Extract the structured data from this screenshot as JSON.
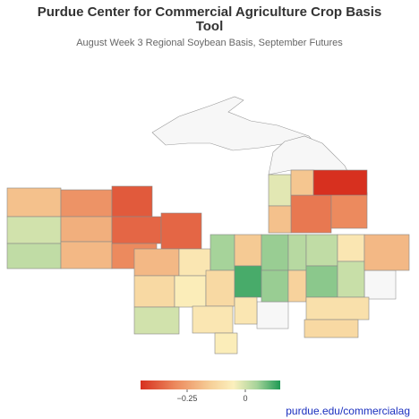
{
  "title": "Purdue Center for Commercial Agriculture Crop Basis Tool",
  "subtitle": "August Week 3 Regional Soybean Basis, September Futures",
  "map": {
    "values": [
      -0.18,
      -0.28,
      -0.38,
      0.0,
      -0.22,
      -0.36,
      0.02,
      -0.2,
      -0.3,
      -0.36,
      -0.2,
      -0.08,
      0.05,
      -0.12,
      -0.06,
      -0.12,
      0.0,
      -0.08,
      -0.06,
      -0.16,
      0.06,
      0.03,
      0.12,
      0.06,
      -0.08,
      -0.14,
      0.02,
      -0.08,
      0.07,
      0.01,
      -0.2,
      -0.1,
      -0.02,
      -0.33,
      -0.3,
      -0.45,
      -0.17,
      -0.18,
      -0.12
    ],
    "colorscale": [
      [
        -0.45,
        "#d7301f"
      ],
      [
        -0.3,
        "#ec8a5e"
      ],
      [
        -0.15,
        "#f6cf98"
      ],
      [
        -0.05,
        "#fbf0bd"
      ],
      [
        0.05,
        "#a6d39a"
      ],
      [
        0.15,
        "#1f9a55"
      ]
    ],
    "colorlim": [
      -0.45,
      0.15
    ],
    "colorticks": [
      {
        "value": -0.25,
        "label": "−0.25"
      },
      0
    ]
  },
  "footer_link": "purdue.edu/commercialag"
}
